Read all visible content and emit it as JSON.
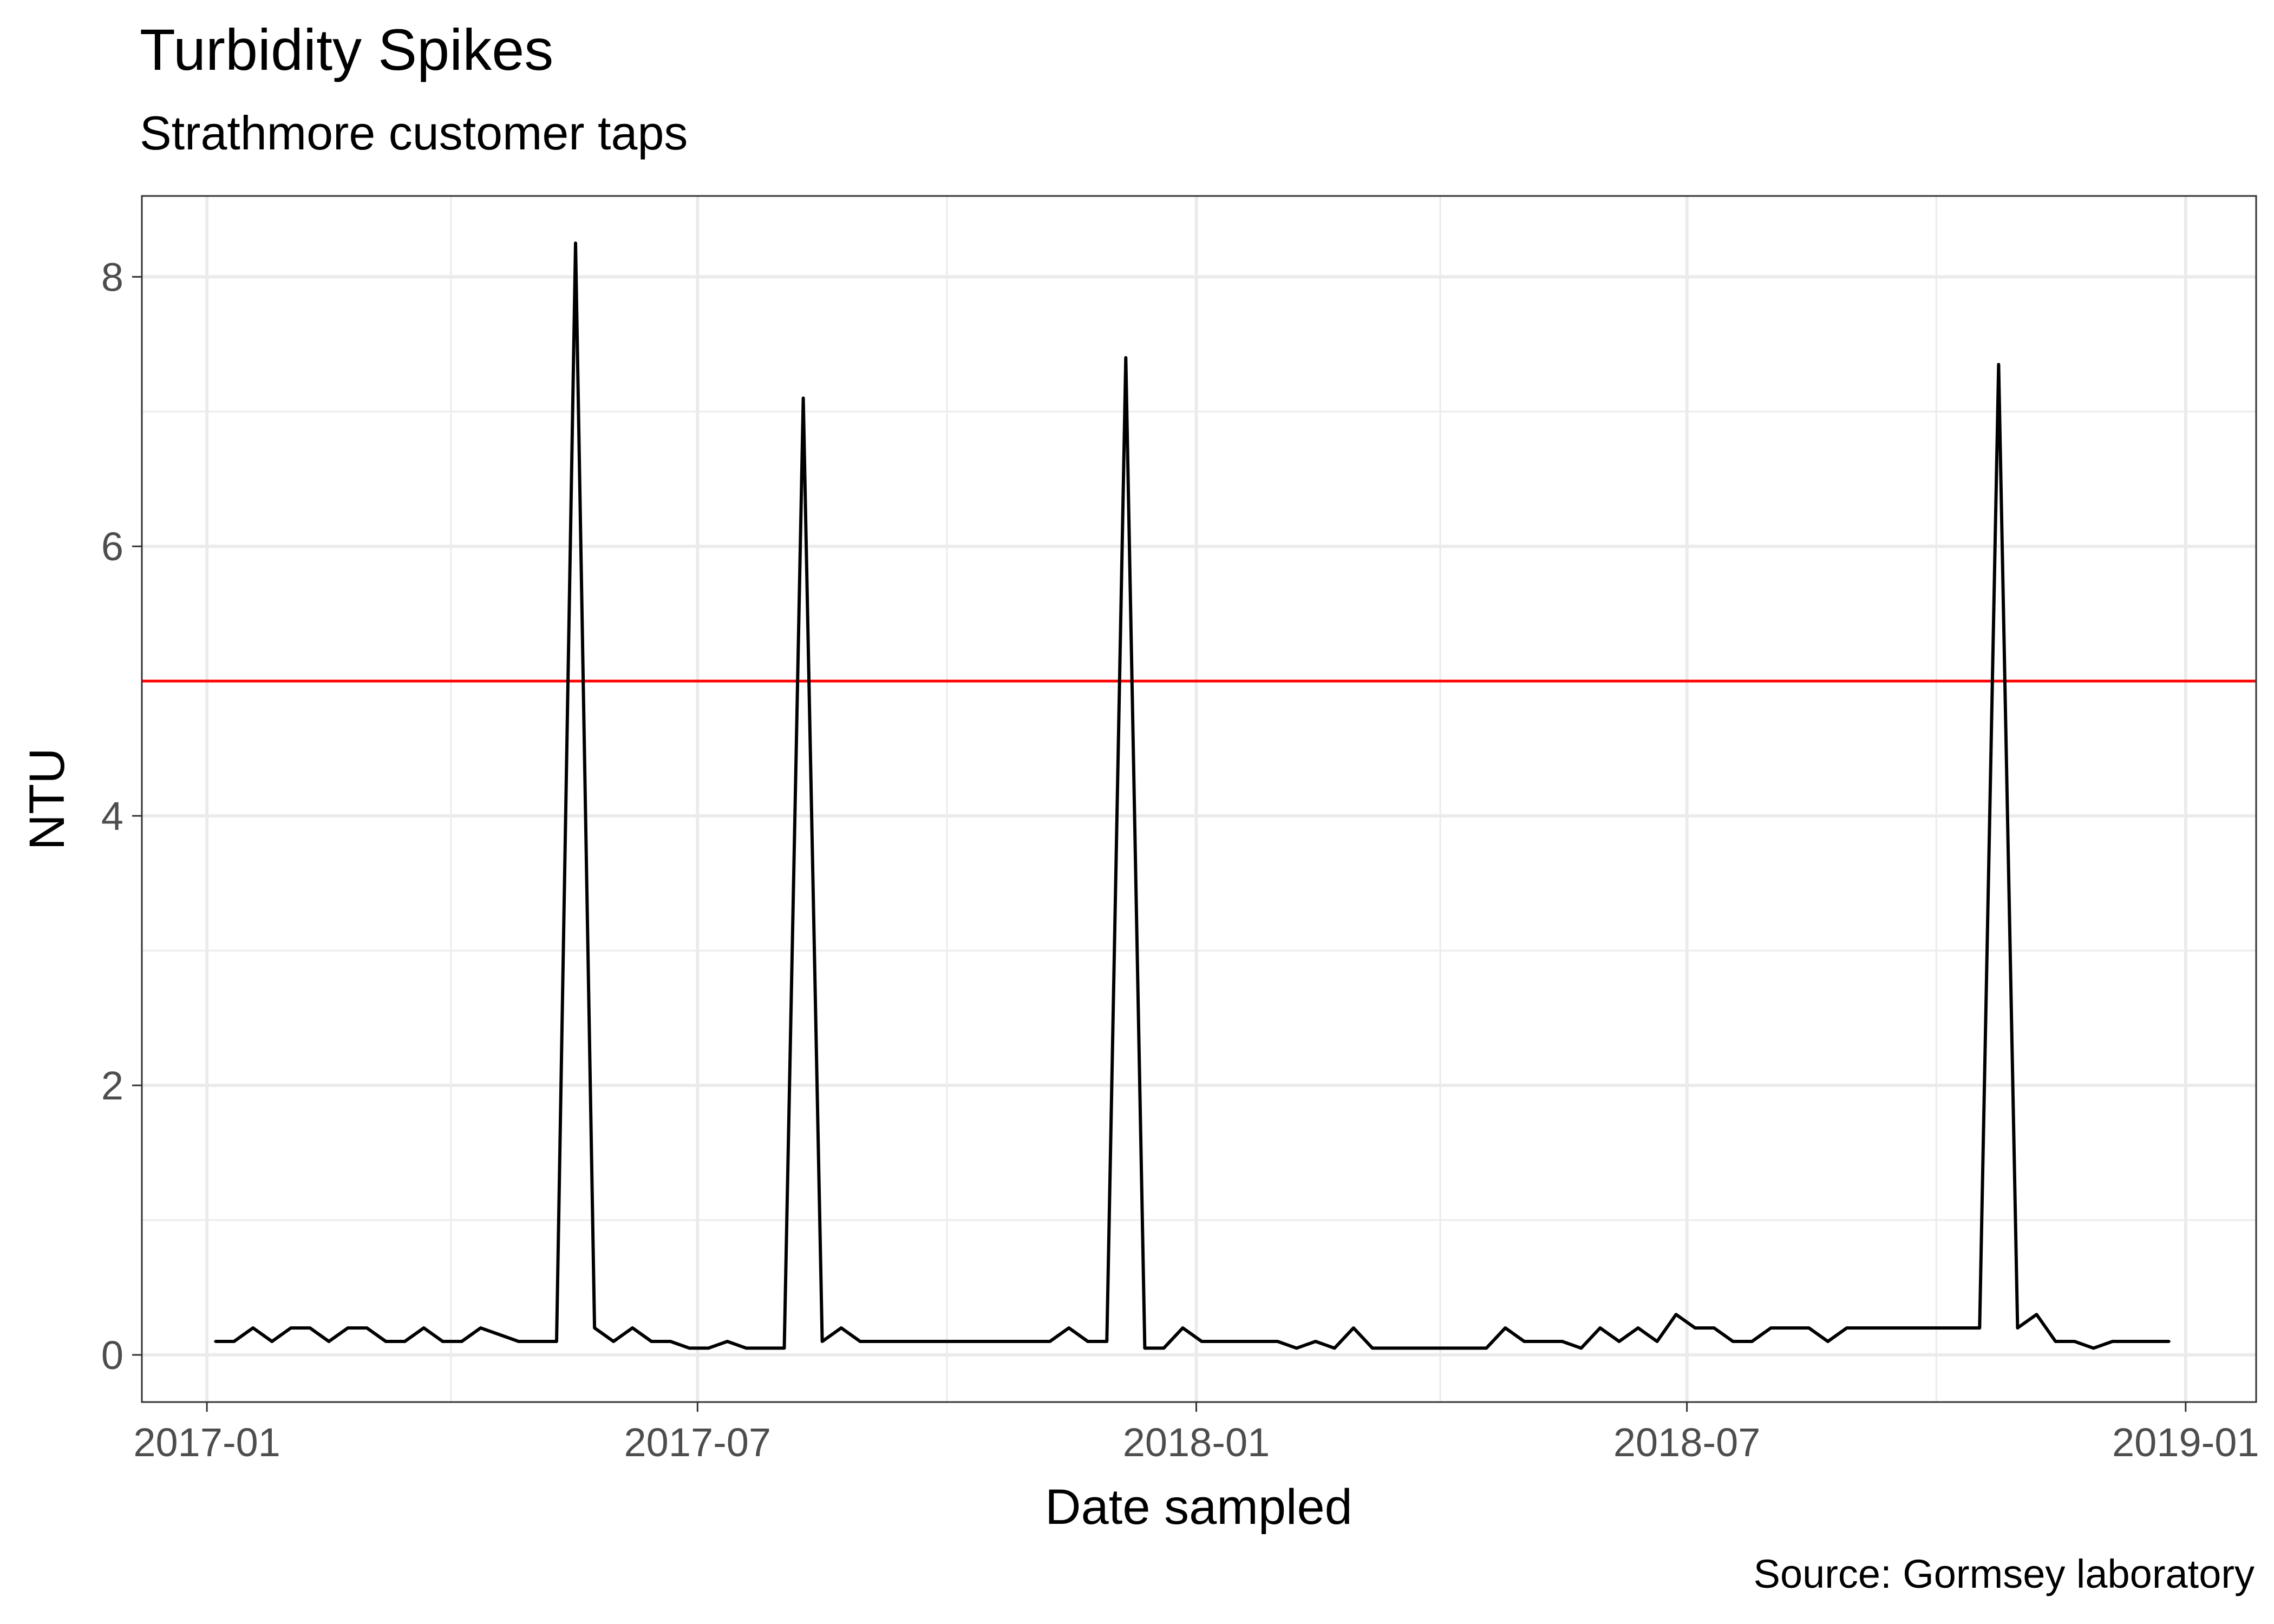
{
  "chart_data": {
    "type": "line",
    "title": "Turbidity Spikes",
    "subtitle": "Strathmore customer taps",
    "caption": "Source: Gormsey laboratory",
    "xlabel": "Date sampled",
    "ylabel": "NTU",
    "xlim": [
      "2016-12-08",
      "2019-01-27"
    ],
    "ylim": [
      -0.35,
      8.6
    ],
    "x_ticks": [
      "2017-01",
      "2017-07",
      "2018-01",
      "2018-07",
      "2019-01"
    ],
    "x_tick_dates": [
      "2017-01-01",
      "2017-07-01",
      "2018-01-01",
      "2018-07-01",
      "2019-01-01"
    ],
    "x_minor_dates": [
      "2017-04-01",
      "2017-10-01",
      "2018-04-01",
      "2018-10-01"
    ],
    "y_ticks": [
      0,
      2,
      4,
      6,
      8
    ],
    "y_minor": [
      1,
      3,
      5,
      7
    ],
    "grid": true,
    "reference_line": {
      "y": 5,
      "color": "#ff0000"
    },
    "line_color": "#000000",
    "series": [
      {
        "x": [
          "2017-01-04",
          "2017-01-11",
          "2017-01-18",
          "2017-01-25",
          "2017-02-01",
          "2017-02-08",
          "2017-02-15",
          "2017-02-22",
          "2017-03-01",
          "2017-03-08",
          "2017-03-15",
          "2017-03-22",
          "2017-03-29",
          "2017-04-05",
          "2017-04-12",
          "2017-04-19",
          "2017-04-26",
          "2017-05-03",
          "2017-05-10",
          "2017-05-17",
          "2017-05-24",
          "2017-05-31",
          "2017-06-07",
          "2017-06-14",
          "2017-06-21",
          "2017-06-28",
          "2017-07-05",
          "2017-07-12",
          "2017-07-19",
          "2017-07-26",
          "2017-08-02",
          "2017-08-09",
          "2017-08-16",
          "2017-08-23",
          "2017-08-30",
          "2017-09-06",
          "2017-09-13",
          "2017-09-20",
          "2017-09-27",
          "2017-10-04",
          "2017-10-11",
          "2017-10-18",
          "2017-10-25",
          "2017-11-01",
          "2017-11-08",
          "2017-11-15",
          "2017-11-22",
          "2017-11-29",
          "2017-12-06",
          "2017-12-13",
          "2017-12-20",
          "2017-12-27",
          "2018-01-03",
          "2018-01-10",
          "2018-01-17",
          "2018-01-24",
          "2018-01-31",
          "2018-02-07",
          "2018-02-14",
          "2018-02-21",
          "2018-02-28",
          "2018-03-07",
          "2018-03-14",
          "2018-03-21",
          "2018-03-28",
          "2018-04-04",
          "2018-04-11",
          "2018-04-18",
          "2018-04-25",
          "2018-05-02",
          "2018-05-09",
          "2018-05-16",
          "2018-05-23",
          "2018-05-30",
          "2018-06-06",
          "2018-06-13",
          "2018-06-20",
          "2018-06-27",
          "2018-07-04",
          "2018-07-11",
          "2018-07-18",
          "2018-07-25",
          "2018-08-01",
          "2018-08-08",
          "2018-08-15",
          "2018-08-22",
          "2018-08-29",
          "2018-09-05",
          "2018-09-12",
          "2018-09-19",
          "2018-09-26",
          "2018-10-03",
          "2018-10-10",
          "2018-10-17",
          "2018-10-24",
          "2018-10-31",
          "2018-11-07",
          "2018-11-14",
          "2018-11-21",
          "2018-11-28",
          "2018-12-05",
          "2018-12-12",
          "2018-12-19",
          "2018-12-26"
        ],
        "values": [
          0.1,
          0.1,
          0.2,
          0.1,
          0.2,
          0.2,
          0.1,
          0.2,
          0.2,
          0.1,
          0.1,
          0.2,
          0.1,
          0.1,
          0.2,
          0.15,
          0.1,
          0.1,
          0.1,
          8.25,
          0.2,
          0.1,
          0.2,
          0.1,
          0.1,
          0.05,
          0.05,
          0.1,
          0.05,
          0.05,
          0.05,
          7.1,
          0.1,
          0.2,
          0.1,
          0.1,
          0.1,
          0.1,
          0.1,
          0.1,
          0.1,
          0.1,
          0.1,
          0.1,
          0.1,
          0.2,
          0.1,
          0.1,
          7.4,
          0.05,
          0.05,
          0.2,
          0.1,
          0.1,
          0.1,
          0.1,
          0.1,
          0.05,
          0.1,
          0.05,
          0.2,
          0.05,
          0.05,
          0.05,
          0.05,
          0.05,
          0.05,
          0.05,
          0.2,
          0.1,
          0.1,
          0.1,
          0.05,
          0.2,
          0.1,
          0.2,
          0.1,
          0.3,
          0.2,
          0.2,
          0.1,
          0.1,
          0.2,
          0.2,
          0.2,
          0.1,
          0.2,
          0.2,
          0.2,
          0.2,
          0.2,
          0.2,
          0.2,
          0.2,
          7.35,
          0.2,
          0.3,
          0.1,
          0.1,
          0.05,
          0.1,
          0.1,
          0.1,
          0.1
        ]
      }
    ]
  }
}
